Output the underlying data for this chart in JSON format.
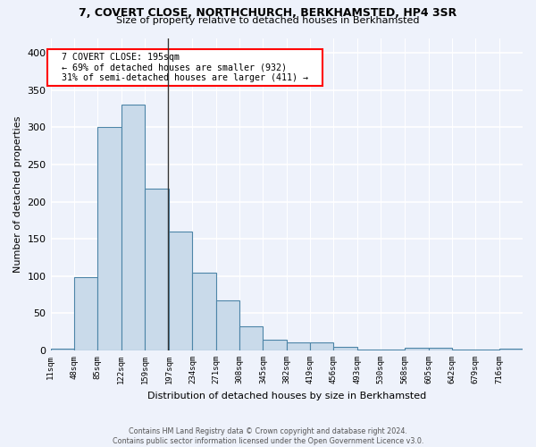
{
  "title1": "7, COVERT CLOSE, NORTHCHURCH, BERKHAMSTED, HP4 3SR",
  "title2": "Size of property relative to detached houses in Berkhamsted",
  "xlabel": "Distribution of detached houses by size in Berkhamsted",
  "ylabel": "Number of detached properties",
  "footer1": "Contains HM Land Registry data © Crown copyright and database right 2024.",
  "footer2": "Contains public sector information licensed under the Open Government Licence v3.0.",
  "annotation_line1": "7 COVERT CLOSE: 195sqm",
  "annotation_line2": "← 69% of detached houses are smaller (932)",
  "annotation_line3": "31% of semi-detached houses are larger (411) →",
  "bar_edges": [
    11,
    48,
    85,
    122,
    159,
    197,
    234,
    271,
    308,
    345,
    382,
    419,
    456,
    493,
    530,
    568,
    605,
    642,
    679,
    716,
    753
  ],
  "bar_heights": [
    3,
    98,
    300,
    330,
    218,
    160,
    105,
    67,
    33,
    14,
    11,
    11,
    5,
    1,
    1,
    4,
    4,
    1,
    1,
    3
  ],
  "bar_color": "#c9daea",
  "bar_edge_color": "#4d85a8",
  "bg_color": "#eef2fb",
  "grid_color": "#ffffff",
  "property_size": 195,
  "ylim": [
    0,
    420
  ],
  "yticks": [
    0,
    50,
    100,
    150,
    200,
    250,
    300,
    350,
    400
  ]
}
